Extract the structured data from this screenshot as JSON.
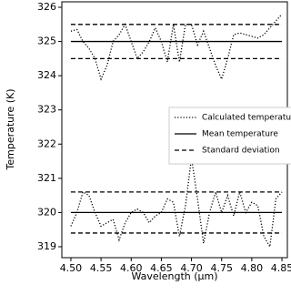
{
  "chart_data": {
    "type": "line",
    "x_label": "Wavelength (μm)",
    "y_label": "Temperature (K)",
    "x": [
      4.5,
      4.51,
      4.52,
      4.53,
      4.54,
      4.55,
      4.56,
      4.57,
      4.58,
      4.59,
      4.6,
      4.61,
      4.62,
      4.63,
      4.64,
      4.65,
      4.66,
      4.67,
      4.68,
      4.69,
      4.7,
      4.71,
      4.72,
      4.73,
      4.74,
      4.75,
      4.76,
      4.77,
      4.78,
      4.79,
      4.8,
      4.81,
      4.82,
      4.83,
      4.84,
      4.85
    ],
    "series": [
      {
        "name": "Calculated temperatures",
        "style": "dotted",
        "color": "#000000",
        "values": [
          325.3,
          325.35,
          325.0,
          324.8,
          324.5,
          323.9,
          324.3,
          325.0,
          325.2,
          325.5,
          325.0,
          324.5,
          324.7,
          325.0,
          325.4,
          325.0,
          324.4,
          325.5,
          324.4,
          325.5,
          325.5,
          324.9,
          325.3,
          324.8,
          324.3,
          323.9,
          324.5,
          325.2,
          325.25,
          325.2,
          325.15,
          325.1,
          325.2,
          325.4,
          325.6,
          325.8
        ]
      },
      {
        "style": "dotted",
        "color": "#000000",
        "values": [
          319.6,
          320.0,
          320.6,
          320.5,
          320.0,
          319.6,
          319.7,
          319.8,
          319.2,
          319.7,
          320.0,
          320.1,
          320.0,
          319.7,
          319.9,
          320.0,
          320.4,
          320.3,
          319.3,
          320.2,
          321.6,
          320.4,
          319.1,
          320.0,
          320.6,
          320.0,
          320.5,
          319.9,
          320.6,
          320.0,
          320.3,
          320.2,
          319.3,
          319.0,
          320.4,
          320.6
        ]
      }
    ],
    "hlines": [
      {
        "name": "Mean temperature",
        "style": "solid",
        "color": "#000000",
        "levels": [
          325,
          320
        ]
      },
      {
        "name": "Standard deviation",
        "style": "dashed",
        "color": "#000000",
        "levels": [
          325.5,
          324.5,
          320.6,
          319.4
        ]
      }
    ],
    "xlim": [
      4.485,
      4.859
    ],
    "ylim": [
      318.68,
      326.16
    ],
    "xticks": [
      {
        "value": 4.5,
        "label": "4.50"
      },
      4.55,
      {
        "value": 4.6,
        "label": "4.60"
      },
      4.65,
      {
        "value": 4.7,
        "label": "4.70"
      },
      4.75,
      {
        "value": 4.8,
        "label": "4.80"
      },
      4.85
    ],
    "yticks": [
      319,
      320,
      321,
      322,
      323,
      324,
      325,
      326
    ],
    "legend": "right"
  }
}
